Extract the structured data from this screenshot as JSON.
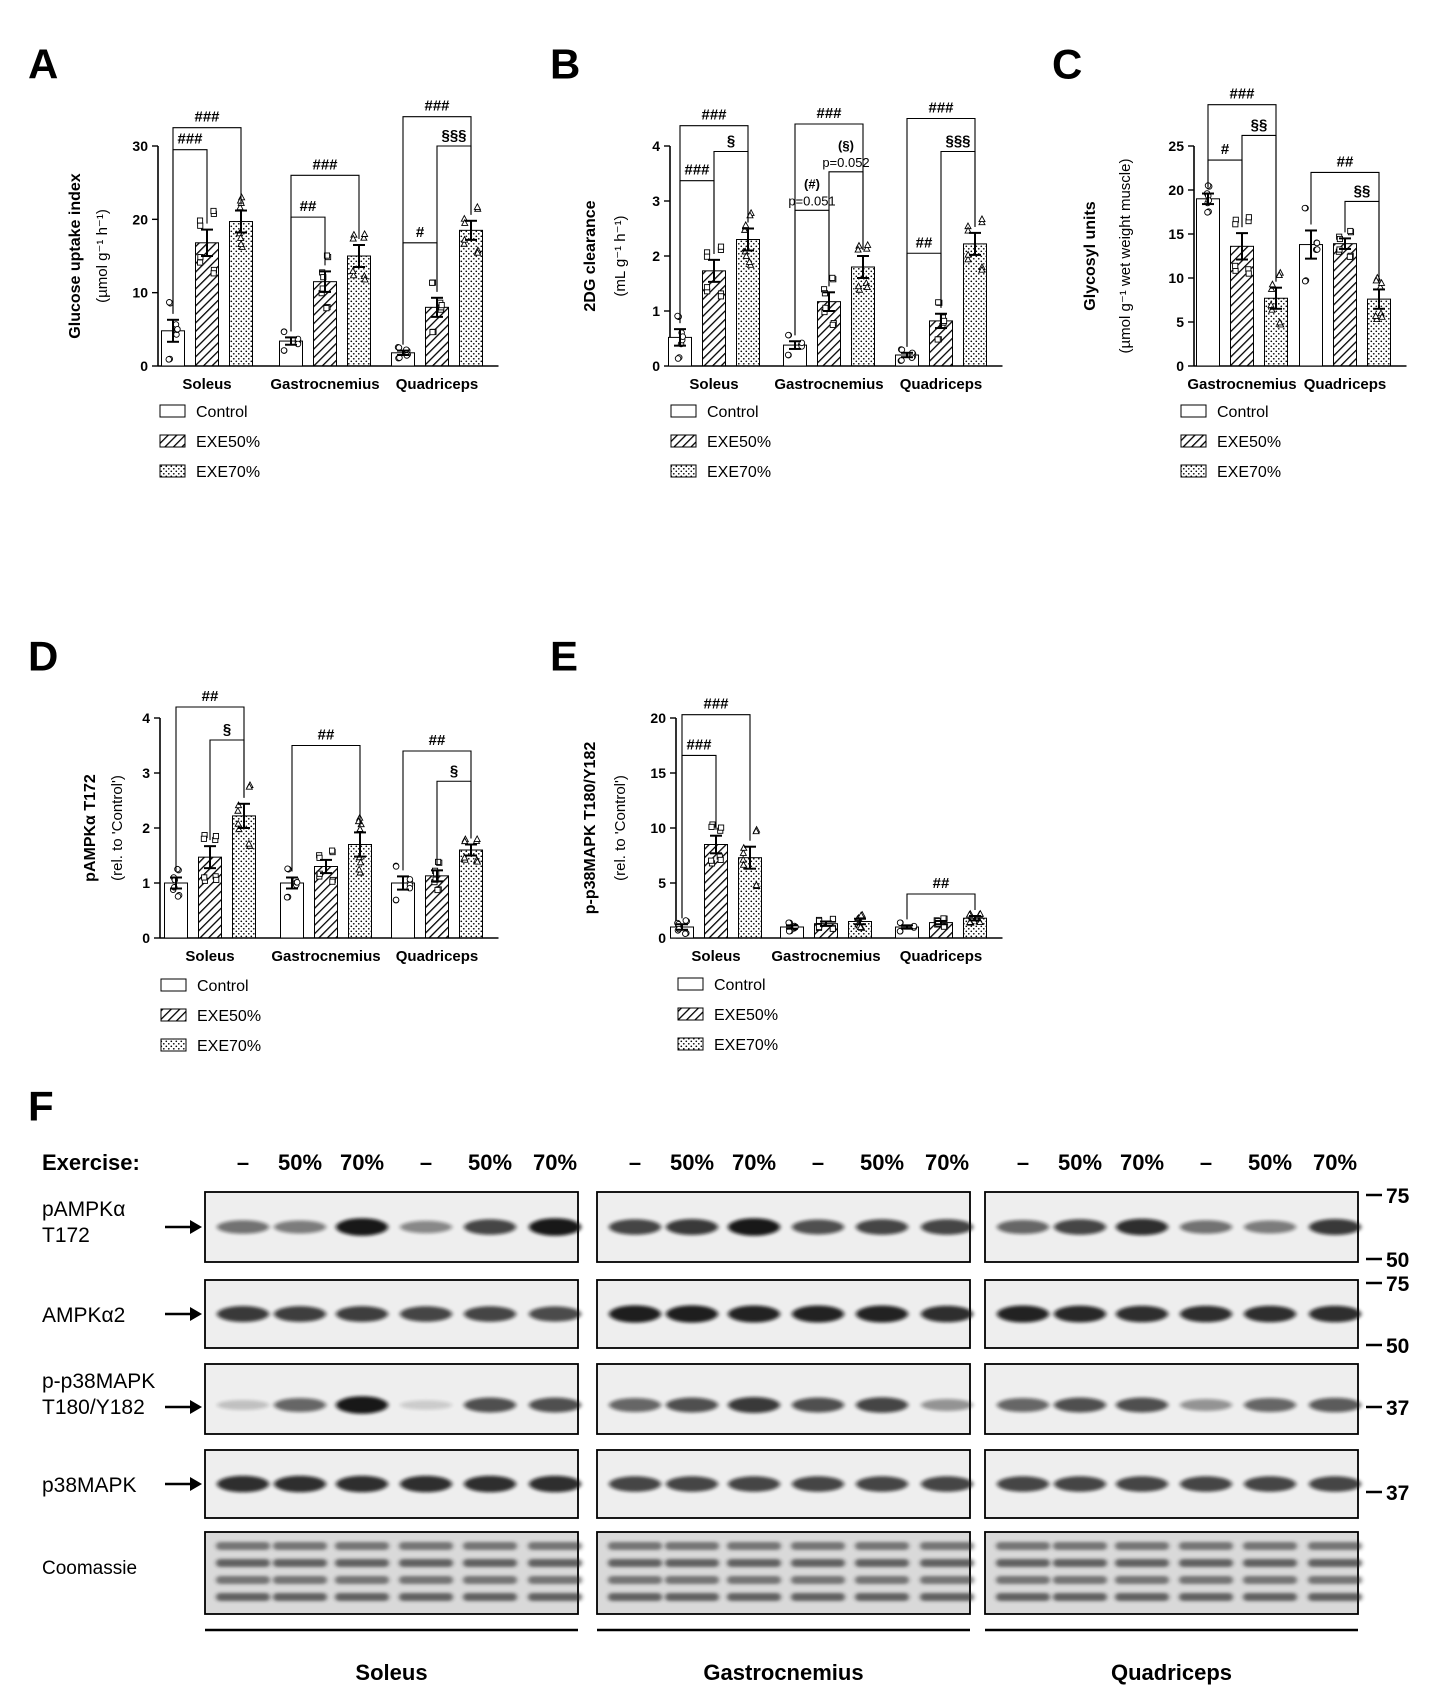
{
  "colors": {
    "ink": "#000000",
    "paper": "#ffffff",
    "blot_band": "#111111",
    "blot_bg": "#eeeeee"
  },
  "legend": [
    "Control",
    "EXE50%",
    "EXE70%"
  ],
  "chart_data": [
    {
      "id": "A",
      "type": "bar",
      "panel_label": "A",
      "ylabel_line1": "Glucose uptake index",
      "ylabel_line2": "(µmol g⁻¹ h⁻¹)",
      "ylim": [
        0,
        30
      ],
      "yticks": [
        0,
        10,
        20,
        30
      ],
      "categories": [
        "Soleus",
        "Gastrocnemius",
        "Quadriceps"
      ],
      "series": [
        {
          "name": "Control",
          "values": [
            4.8,
            3.4,
            1.8
          ],
          "errors": [
            1.5,
            0.5,
            0.3
          ]
        },
        {
          "name": "EXE50%",
          "values": [
            16.8,
            11.5,
            8.0
          ],
          "errors": [
            1.8,
            1.4,
            1.3
          ]
        },
        {
          "name": "EXE70%",
          "values": [
            19.7,
            15.0,
            18.5
          ],
          "errors": [
            1.5,
            1.5,
            1.3
          ]
        }
      ],
      "brackets": [
        {
          "cat": 0,
          "from": 0,
          "to": 1,
          "y": 29.5,
          "label": "###"
        },
        {
          "cat": 0,
          "from": 0,
          "to": 2,
          "y": 32.5,
          "label": "###"
        },
        {
          "cat": 1,
          "from": 0,
          "to": 1,
          "y": 20.3,
          "label": "##"
        },
        {
          "cat": 1,
          "from": 0,
          "to": 2,
          "y": 26.0,
          "label": "###"
        },
        {
          "cat": 2,
          "from": 0,
          "to": 1,
          "y": 16.8,
          "label": "#"
        },
        {
          "cat": 2,
          "from": 1,
          "to": 2,
          "y": 30.0,
          "label": "§§§"
        },
        {
          "cat": 2,
          "from": 0,
          "to": 2,
          "y": 34.0,
          "label": "###"
        }
      ]
    },
    {
      "id": "B",
      "type": "bar",
      "panel_label": "B",
      "ylabel_line1": "2DG clearance",
      "ylabel_line2": "(mL g⁻¹ h⁻¹)",
      "ylim": [
        0,
        4
      ],
      "yticks": [
        0,
        1,
        2,
        3,
        4
      ],
      "categories": [
        "Soleus",
        "Gastrocnemius",
        "Quadriceps"
      ],
      "series": [
        {
          "name": "Control",
          "values": [
            0.52,
            0.38,
            0.2
          ],
          "errors": [
            0.15,
            0.07,
            0.04
          ]
        },
        {
          "name": "EXE50%",
          "values": [
            1.73,
            1.17,
            0.82
          ],
          "errors": [
            0.2,
            0.17,
            0.13
          ]
        },
        {
          "name": "EXE70%",
          "values": [
            2.3,
            1.8,
            2.22
          ],
          "errors": [
            0.2,
            0.2,
            0.2
          ]
        }
      ],
      "brackets": [
        {
          "cat": 0,
          "from": 0,
          "to": 1,
          "y": 3.37,
          "label": "###"
        },
        {
          "cat": 0,
          "from": 1,
          "to": 2,
          "y": 3.9,
          "label": "§"
        },
        {
          "cat": 0,
          "from": 0,
          "to": 2,
          "y": 4.37,
          "label": "###"
        },
        {
          "cat": 1,
          "from": 0,
          "to": 1,
          "y": 2.83,
          "label": "(#)",
          "note": "p=0.051"
        },
        {
          "cat": 1,
          "from": 1,
          "to": 2,
          "y": 3.53,
          "label": "(§)",
          "note": "p=0.052"
        },
        {
          "cat": 1,
          "from": 0,
          "to": 2,
          "y": 4.4,
          "label": "###"
        },
        {
          "cat": 2,
          "from": 0,
          "to": 1,
          "y": 2.05,
          "label": "##"
        },
        {
          "cat": 2,
          "from": 1,
          "to": 2,
          "y": 3.9,
          "label": "§§§"
        },
        {
          "cat": 2,
          "from": 0,
          "to": 2,
          "y": 4.5,
          "label": "###"
        }
      ]
    },
    {
      "id": "C",
      "type": "bar",
      "panel_label": "C",
      "ylabel_line1": "Glycosyl units",
      "ylabel_line2": "(µmol g⁻¹ wet weight muscle)",
      "ylim": [
        0,
        25
      ],
      "yticks": [
        0,
        5,
        10,
        15,
        20,
        25
      ],
      "categories": [
        "Gastrocnemius",
        "Quadriceps"
      ],
      "series": [
        {
          "name": "Control",
          "values": [
            19.0,
            13.8
          ],
          "errors": [
            0.6,
            1.6
          ]
        },
        {
          "name": "EXE50%",
          "values": [
            13.6,
            13.9
          ],
          "errors": [
            1.5,
            0.6
          ]
        },
        {
          "name": "EXE70%",
          "values": [
            7.7,
            7.6
          ],
          "errors": [
            1.2,
            1.1
          ]
        }
      ],
      "brackets": [
        {
          "cat": 0,
          "from": 0,
          "to": 1,
          "y": 23.4,
          "label": "#"
        },
        {
          "cat": 0,
          "from": 1,
          "to": 2,
          "y": 26.2,
          "label": "§§"
        },
        {
          "cat": 0,
          "from": 0,
          "to": 2,
          "y": 29.7,
          "label": "###"
        },
        {
          "cat": 1,
          "from": 1,
          "to": 2,
          "y": 18.7,
          "label": "§§"
        },
        {
          "cat": 1,
          "from": 0,
          "to": 2,
          "y": 22.0,
          "label": "##"
        }
      ]
    },
    {
      "id": "D",
      "type": "bar",
      "panel_label": "D",
      "ylabel_line1": "pAMPKα T172",
      "ylabel_line2": "(rel. to 'Control')",
      "ylim": [
        0,
        4
      ],
      "yticks": [
        0,
        1,
        2,
        3,
        4
      ],
      "categories": [
        "Soleus",
        "Gastrocnemius",
        "Quadriceps"
      ],
      "series": [
        {
          "name": "Control",
          "values": [
            1.0,
            1.0,
            1.0
          ],
          "errors": [
            0.1,
            0.1,
            0.12
          ]
        },
        {
          "name": "EXE50%",
          "values": [
            1.47,
            1.3,
            1.13
          ],
          "errors": [
            0.2,
            0.12,
            0.1
          ]
        },
        {
          "name": "EXE70%",
          "values": [
            2.22,
            1.7,
            1.6
          ],
          "errors": [
            0.22,
            0.22,
            0.1
          ]
        }
      ],
      "brackets": [
        {
          "cat": 0,
          "from": 1,
          "to": 2,
          "y": 3.6,
          "label": "§"
        },
        {
          "cat": 0,
          "from": 0,
          "to": 2,
          "y": 4.2,
          "label": "##"
        },
        {
          "cat": 1,
          "from": 0,
          "to": 2,
          "y": 3.5,
          "label": "##"
        },
        {
          "cat": 2,
          "from": 1,
          "to": 2,
          "y": 2.85,
          "label": "§"
        },
        {
          "cat": 2,
          "from": 0,
          "to": 2,
          "y": 3.4,
          "label": "##"
        }
      ]
    },
    {
      "id": "E",
      "type": "bar",
      "panel_label": "E",
      "ylabel_line1": "p-p38MAPK T180/Y182",
      "ylabel_line2": "(rel. to 'Control')",
      "ylim": [
        0,
        20
      ],
      "yticks": [
        0,
        5,
        10,
        15,
        20
      ],
      "categories": [
        "Soleus",
        "Gastrocnemius",
        "Quadriceps"
      ],
      "series": [
        {
          "name": "Control",
          "values": [
            1.0,
            1.0,
            1.0
          ],
          "errors": [
            0.25,
            0.15,
            0.15
          ]
        },
        {
          "name": "EXE50%",
          "values": [
            8.5,
            1.3,
            1.4
          ],
          "errors": [
            0.8,
            0.2,
            0.15
          ]
        },
        {
          "name": "EXE70%",
          "values": [
            7.3,
            1.5,
            1.8
          ],
          "errors": [
            1.0,
            0.25,
            0.2
          ]
        }
      ],
      "brackets": [
        {
          "cat": 0,
          "from": 0,
          "to": 1,
          "y": 16.6,
          "label": "###"
        },
        {
          "cat": 0,
          "from": 0,
          "to": 2,
          "y": 20.3,
          "label": "###"
        },
        {
          "cat": 2,
          "from": 0,
          "to": 2,
          "y": 4.0,
          "label": "##"
        }
      ]
    }
  ],
  "blot": {
    "panel_label": "F",
    "exercise_label": "Exercise:",
    "lane_labels": [
      "–",
      "50%",
      "70%",
      "–",
      "50%",
      "70%"
    ],
    "groups": [
      "Soleus",
      "Gastrocnemius",
      "Quadriceps"
    ],
    "rows": [
      {
        "label": "pAMPKα\nT172",
        "markers": [
          "75",
          "50"
        ],
        "intensity": [
          [
            0.55,
            0.5,
            0.95,
            0.45,
            0.75,
            0.95
          ],
          [
            0.75,
            0.8,
            0.95,
            0.7,
            0.75,
            0.75
          ],
          [
            0.6,
            0.75,
            0.85,
            0.55,
            0.5,
            0.8
          ]
        ]
      },
      {
        "label": "AMPKα2",
        "markers": [
          "75",
          "50"
        ],
        "intensity": [
          [
            0.8,
            0.78,
            0.78,
            0.75,
            0.75,
            0.72
          ],
          [
            0.92,
            0.92,
            0.9,
            0.9,
            0.9,
            0.85
          ],
          [
            0.9,
            0.88,
            0.85,
            0.85,
            0.85,
            0.85
          ]
        ]
      },
      {
        "label": "p-p38MAPK\nT180/Y182",
        "markers": [
          "37"
        ],
        "intensity": [
          [
            0.2,
            0.6,
            0.95,
            0.15,
            0.7,
            0.7
          ],
          [
            0.6,
            0.7,
            0.8,
            0.7,
            0.75,
            0.4
          ],
          [
            0.6,
            0.7,
            0.7,
            0.4,
            0.6,
            0.65
          ]
        ]
      },
      {
        "label": "p38MAPK",
        "markers": [
          "37"
        ],
        "intensity": [
          [
            0.85,
            0.85,
            0.85,
            0.85,
            0.85,
            0.85
          ],
          [
            0.75,
            0.75,
            0.75,
            0.75,
            0.75,
            0.75
          ],
          [
            0.75,
            0.75,
            0.75,
            0.75,
            0.75,
            0.75
          ]
        ]
      },
      {
        "label": "Coomassie",
        "markers": [],
        "intensity": [
          [
            0.7,
            0.7,
            0.7,
            0.7,
            0.7,
            0.7
          ],
          [
            0.7,
            0.7,
            0.7,
            0.7,
            0.7,
            0.7
          ],
          [
            0.7,
            0.7,
            0.7,
            0.7,
            0.7,
            0.7
          ]
        ]
      }
    ]
  }
}
